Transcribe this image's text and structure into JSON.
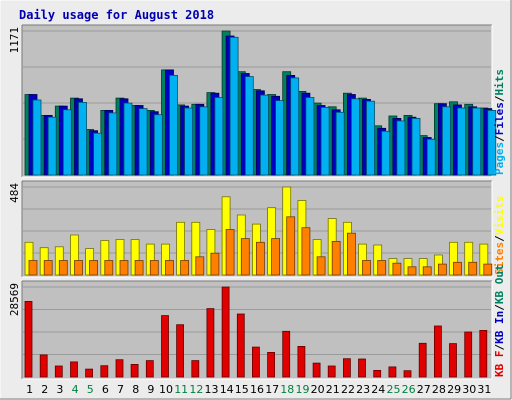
{
  "title": "Daily usage for August 2018",
  "colors": {
    "background": "#ececec",
    "panel": "#c0c0c0",
    "grid": "#9a9a9a",
    "title": "#0000b0",
    "weekday_label": "#000000",
    "weekend_label": "#008040",
    "hits": "#008060",
    "files": "#0000c0",
    "pages": "#00b0f0",
    "visits": "#ffff00",
    "sites": "#ff8000",
    "kb_f": "#e00000",
    "kb_in": "#0000c0",
    "kb_out": "#008060"
  },
  "chart_data": [
    {
      "type": "bar",
      "name": "hits-files-pages",
      "ylabel": "1171",
      "ylim": [
        0,
        1171
      ],
      "categories": [
        "1",
        "2",
        "3",
        "4",
        "5",
        "6",
        "7",
        "8",
        "9",
        "10",
        "11",
        "12",
        "13",
        "14",
        "15",
        "16",
        "17",
        "18",
        "19",
        "20",
        "21",
        "22",
        "23",
        "24",
        "25",
        "26",
        "27",
        "28",
        "29",
        "30",
        "31"
      ],
      "series": [
        {
          "name": "Hits",
          "values": [
            655,
            485,
            560,
            625,
            370,
            525,
            625,
            565,
            525,
            855,
            570,
            575,
            670,
            1171,
            840,
            695,
            655,
            840,
            680,
            585,
            555,
            665,
            625,
            400,
            480,
            485,
            320,
            580,
            595,
            575,
            545
          ]
        },
        {
          "name": "Files",
          "values": [
            655,
            485,
            560,
            620,
            360,
            525,
            620,
            565,
            515,
            855,
            560,
            575,
            665,
            1130,
            825,
            685,
            640,
            810,
            665,
            565,
            530,
            655,
            615,
            380,
            460,
            470,
            305,
            580,
            570,
            555,
            540
          ]
        },
        {
          "name": "Pages",
          "values": [
            610,
            470,
            530,
            590,
            340,
            505,
            585,
            540,
            490,
            810,
            545,
            555,
            630,
            1120,
            800,
            650,
            605,
            790,
            630,
            550,
            510,
            620,
            600,
            355,
            440,
            460,
            290,
            555,
            545,
            545,
            525
          ]
        }
      ],
      "axis_labels": [
        {
          "text": "Pages",
          "color": "#00b0f0"
        },
        {
          "text": "Files",
          "color": "#0000c0"
        },
        {
          "text": "Hits",
          "color": "#008060"
        }
      ]
    },
    {
      "type": "bar",
      "name": "visits-sites",
      "ylabel": "484",
      "ylim": [
        0,
        484
      ],
      "categories": [
        "1",
        "2",
        "3",
        "4",
        "5",
        "6",
        "7",
        "8",
        "9",
        "10",
        "11",
        "12",
        "13",
        "14",
        "15",
        "16",
        "17",
        "18",
        "19",
        "20",
        "21",
        "22",
        "23",
        "24",
        "25",
        "26",
        "27",
        "28",
        "29",
        "30",
        "31"
      ],
      "series": [
        {
          "name": "Visits",
          "values": [
            180,
            150,
            155,
            220,
            145,
            190,
            195,
            195,
            170,
            170,
            290,
            290,
            250,
            430,
            330,
            280,
            370,
            484,
            410,
            195,
            310,
            290,
            170,
            165,
            90,
            90,
            90,
            110,
            180,
            180,
            170
          ]
        },
        {
          "name": "Sites",
          "values": [
            80,
            80,
            80,
            80,
            80,
            80,
            80,
            80,
            80,
            80,
            80,
            100,
            120,
            250,
            200,
            180,
            200,
            320,
            260,
            100,
            185,
            230,
            80,
            80,
            65,
            45,
            45,
            60,
            70,
            70,
            60
          ]
        }
      ],
      "axis_labels": [
        {
          "text": "Sites",
          "color": "#ff8000"
        },
        {
          "text": "Visits",
          "color": "#ffff00"
        }
      ]
    },
    {
      "type": "bar",
      "name": "kbytes",
      "ylabel": "28569",
      "ylim": [
        0,
        28569
      ],
      "categories": [
        "1",
        "2",
        "3",
        "4",
        "5",
        "6",
        "7",
        "8",
        "9",
        "10",
        "11",
        "12",
        "13",
        "14",
        "15",
        "16",
        "17",
        "18",
        "19",
        "20",
        "21",
        "22",
        "23",
        "24",
        "25",
        "26",
        "27",
        "28",
        "29",
        "30",
        "31"
      ],
      "series": [
        {
          "name": "KB F",
          "values": [
            24000,
            7000,
            3500,
            4800,
            2500,
            3600,
            5500,
            4000,
            5200,
            19500,
            16600,
            5200,
            21700,
            28569,
            20000,
            9500,
            7800,
            14500,
            9700,
            4400,
            3500,
            5800,
            5700,
            2100,
            3200,
            2000,
            10700,
            16200,
            10600,
            14300,
            14800
          ]
        }
      ],
      "axis_labels": [
        {
          "text": "KB F",
          "color": "#e00000"
        },
        {
          "text": "KB In",
          "color": "#0000c0"
        },
        {
          "text": "KB Out",
          "color": "#008060"
        }
      ]
    }
  ],
  "weekends": [
    "4",
    "5",
    "11",
    "12",
    "18",
    "19",
    "25",
    "26"
  ]
}
